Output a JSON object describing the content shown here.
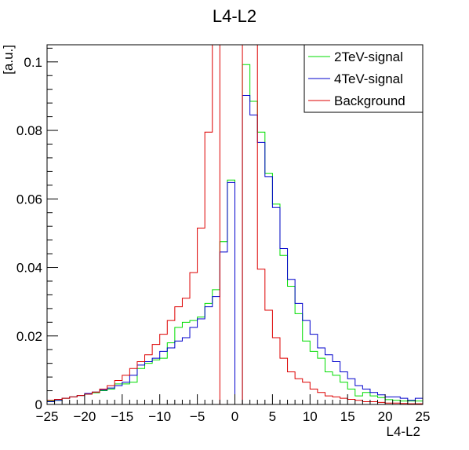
{
  "chart_data": {
    "type": "line",
    "title": "L4-L2",
    "xlabel": "L4-L2",
    "ylabel": "[a.u.]",
    "xlim": [
      -25,
      25
    ],
    "ylim": [
      0,
      0.105
    ],
    "xticks": [
      -25,
      -20,
      -15,
      -10,
      -5,
      0,
      5,
      10,
      15,
      20,
      25
    ],
    "yticks": [
      0,
      0.02,
      0.04,
      0.06,
      0.08,
      0.1
    ],
    "ytick_labels": [
      "0",
      "0.02",
      "0.04",
      "0.06",
      "0.08",
      "0.1"
    ],
    "legend_position": "top-right",
    "bin_edges_start": -25,
    "bin_width": 1,
    "series": [
      {
        "name": "2TeV-signal",
        "color": "#00dd00",
        "values": [
          0.001,
          0.0012,
          0.0018,
          0.0022,
          0.0026,
          0.003,
          0.0034,
          0.004,
          0.0045,
          0.006,
          0.006,
          0.0065,
          0.0105,
          0.012,
          0.013,
          0.0135,
          0.018,
          0.0225,
          0.024,
          0.0245,
          0.0255,
          0.0295,
          0.0335,
          0.0475,
          0.0655,
          0.0,
          0.0992,
          0.0885,
          0.0795,
          0.0675,
          0.0585,
          0.0435,
          0.0345,
          0.0265,
          0.0185,
          0.0155,
          0.0135,
          0.0095,
          0.0085,
          0.0065,
          0.0045,
          0.0025,
          0.0035,
          0.0025,
          0.002,
          0.0014,
          0.0012,
          0.001,
          0.001,
          0.001
        ]
      },
      {
        "name": "4TeV-signal",
        "color": "#0000cc",
        "values": [
          0.0008,
          0.0012,
          0.0018,
          0.0022,
          0.0026,
          0.0032,
          0.0036,
          0.0042,
          0.0048,
          0.0055,
          0.0065,
          0.0085,
          0.0115,
          0.0125,
          0.0135,
          0.0155,
          0.0165,
          0.0185,
          0.0195,
          0.0225,
          0.025,
          0.0285,
          0.0315,
          0.0445,
          0.0648,
          0.0,
          0.0902,
          0.0845,
          0.0765,
          0.0665,
          0.0575,
          0.0455,
          0.0365,
          0.0295,
          0.0245,
          0.0205,
          0.0165,
          0.0145,
          0.0125,
          0.0095,
          0.0075,
          0.0055,
          0.0045,
          0.0035,
          0.0028,
          0.0022,
          0.0022,
          0.0018,
          0.0012,
          0.0018
        ]
      },
      {
        "name": "Background",
        "color": "#dd0000",
        "values": [
          0.0012,
          0.0015,
          0.0018,
          0.0022,
          0.0026,
          0.003,
          0.0036,
          0.0045,
          0.0055,
          0.007,
          0.0085,
          0.0105,
          0.0125,
          0.0145,
          0.0175,
          0.0205,
          0.0245,
          0.0285,
          0.031,
          0.0385,
          0.0515,
          0.0795,
          0.11,
          0.0,
          0.0,
          0.0,
          0.11,
          0.11,
          0.0395,
          0.0275,
          0.0195,
          0.0135,
          0.0095,
          0.0075,
          0.0065,
          0.0045,
          0.0035,
          0.0025,
          0.0022,
          0.0018,
          0.0015,
          0.0012,
          0.0008,
          0.0008,
          0.0006,
          0.0004,
          0.0004,
          0.0003,
          0.0002,
          0.0002
        ]
      }
    ]
  }
}
